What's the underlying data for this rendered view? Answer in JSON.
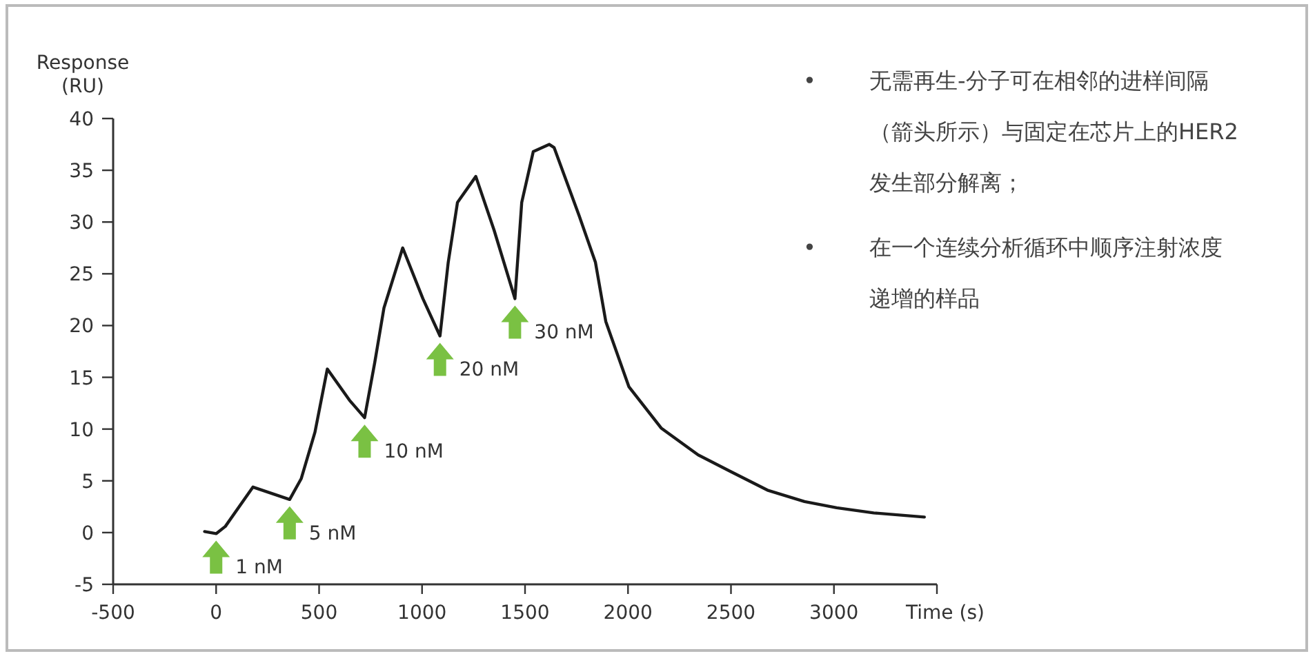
{
  "chart_data": {
    "type": "line",
    "ylabel": "Response\n(RU)",
    "xlabel": "Time (s)",
    "xlim": [
      -500,
      3500
    ],
    "ylim": [
      -5,
      40
    ],
    "xticks": [
      -500,
      0,
      500,
      1000,
      1500,
      2000,
      2500,
      3000,
      {
        "value": 3500,
        "label": null
      }
    ],
    "yticks": [
      -5,
      0,
      5,
      10,
      15,
      20,
      25,
      30,
      35,
      40
    ],
    "grid": false,
    "marker": "none",
    "line_style": "solid",
    "series": [
      {
        "color": "#1a1a1a",
        "x": [
          -56,
          0,
          45,
          179,
          357,
          413,
          480,
          540,
          647,
          721,
          770,
          815,
          906,
          1004,
          1087,
          1127,
          1172,
          1261,
          1350,
          1451,
          1484,
          1540,
          1618,
          1641,
          1763,
          1842,
          1892,
          2004,
          2161,
          2341,
          2498,
          2677,
          2857,
          3013,
          3193,
          3439
        ],
        "values": [
          0.1,
          -0.1,
          0.6,
          4.4,
          3.2,
          5.2,
          9.7,
          15.8,
          12.8,
          11.1,
          16.4,
          21.7,
          27.5,
          22.6,
          19.0,
          26.1,
          31.9,
          34.4,
          29.2,
          22.6,
          31.9,
          36.8,
          37.5,
          37.2,
          30.6,
          26.1,
          20.4,
          14.1,
          10.1,
          7.5,
          5.9,
          4.1,
          3.0,
          2.4,
          1.9,
          1.5
        ]
      }
    ],
    "annotations": [
      {
        "text": "1 nM",
        "x": 0,
        "y": -0.1
      },
      {
        "text": "5 nM",
        "x": 357,
        "y": 3.2
      },
      {
        "text": "10 nM",
        "x": 721,
        "y": 11.1
      },
      {
        "text": "20 nM",
        "x": 1087,
        "y": 19.0
      },
      {
        "text": "30 nM",
        "x": 1451,
        "y": 22.6
      },
      "•\t无需再生-分子可在相邻的进样间隔（箭头所示）与固定在芯片上的HER2发生部分解离；",
      "•\t在一个连续分析循环中顺序注射浓度递增的样品"
    ]
  }
}
